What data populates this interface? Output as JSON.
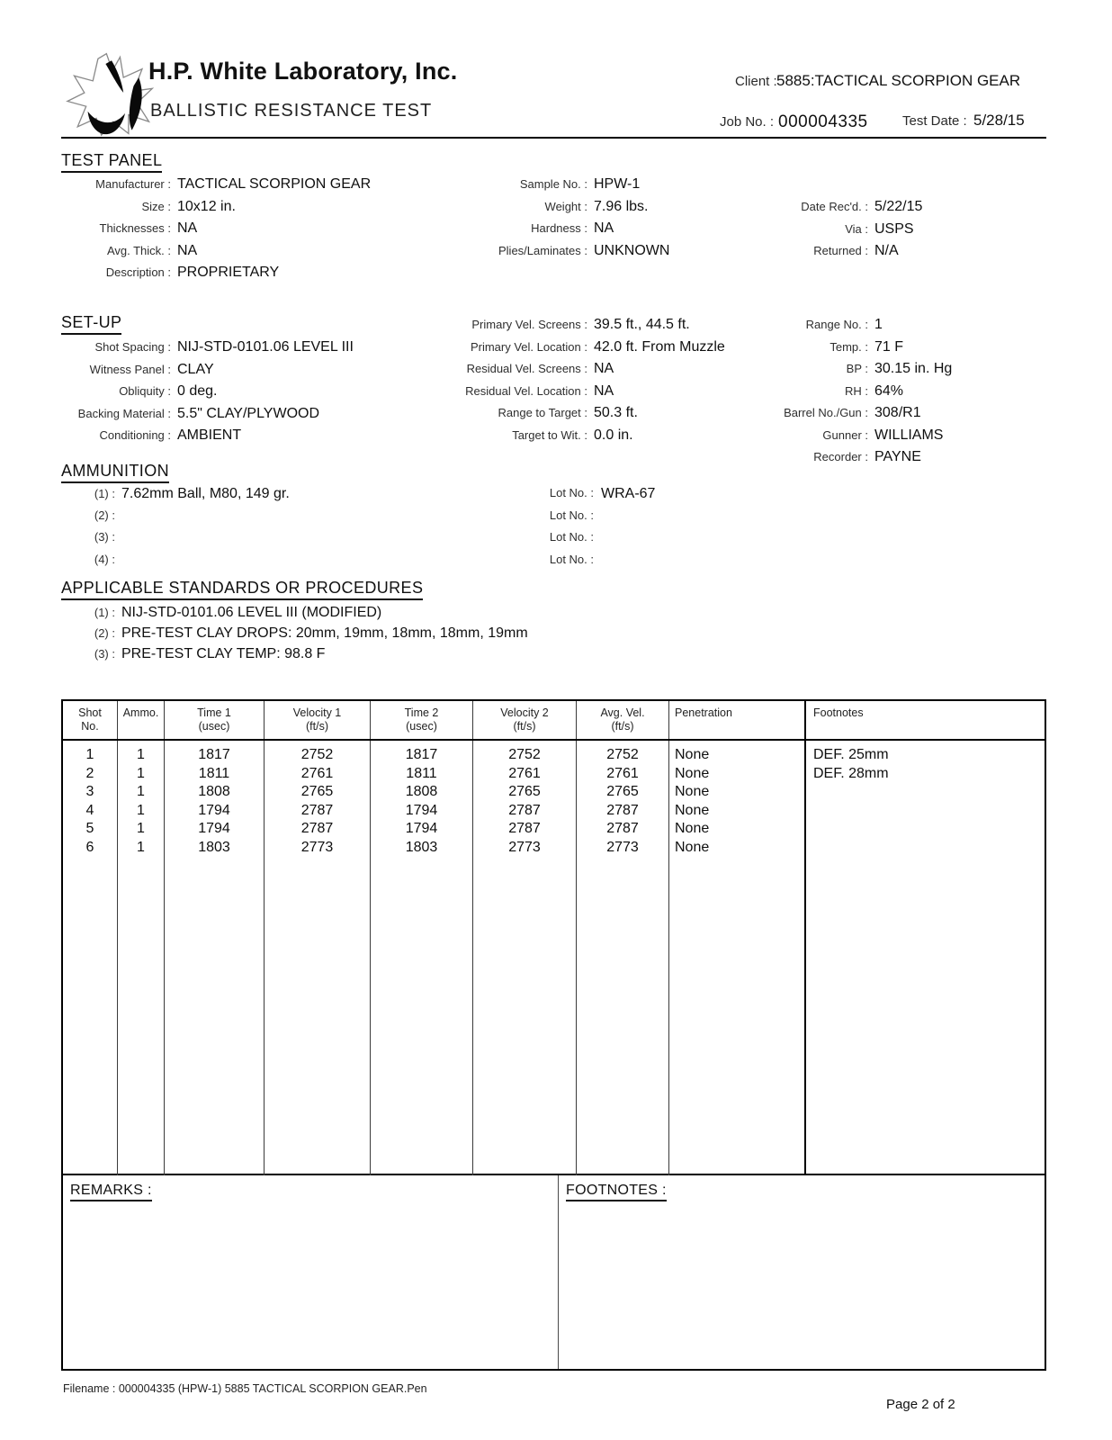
{
  "header": {
    "company": "H.P. White Laboratory, Inc.",
    "doc_title": "BALLISTIC RESISTANCE TEST",
    "client_label": "Client :",
    "client_value": "5885:TACTICAL SCORPION GEAR",
    "job_label": "Job No. :",
    "job_value": "000004335",
    "test_date_label": "Test Date :",
    "test_date_value": "5/28/15"
  },
  "test_panel": {
    "heading": "TEST PANEL",
    "left": [
      {
        "label": "Manufacturer :",
        "value": "TACTICAL SCORPION GEAR"
      },
      {
        "label": "Size :",
        "value": "10x12 in."
      },
      {
        "label": "Thicknesses :",
        "value": "NA"
      },
      {
        "label": "Avg. Thick. :",
        "value": "NA"
      },
      {
        "label": "Description :",
        "value": "PROPRIETARY"
      }
    ],
    "middle": [
      {
        "label": "Sample No. :",
        "value": "HPW-1"
      },
      {
        "label": "Weight :",
        "value": "7.96 lbs."
      },
      {
        "label": "Hardness :",
        "value": "NA"
      },
      {
        "label": "Plies/Laminates :",
        "value": "UNKNOWN"
      }
    ],
    "right": [
      {
        "label": "Date Rec'd. :",
        "value": "5/22/15"
      },
      {
        "label": "Via :",
        "value": "USPS"
      },
      {
        "label": "Returned :",
        "value": "N/A"
      }
    ]
  },
  "setup": {
    "heading": "SET-UP",
    "left": [
      {
        "label": "Shot Spacing :",
        "value": "NIJ-STD-0101.06 LEVEL III"
      },
      {
        "label": "Witness Panel :",
        "value": "CLAY"
      },
      {
        "label": "Obliquity :",
        "value": "0 deg."
      },
      {
        "label": "Backing Material :",
        "value": "5.5\" CLAY/PLYWOOD"
      },
      {
        "label": "Conditioning :",
        "value": "AMBIENT"
      }
    ],
    "middle": [
      {
        "label": "Primary Vel. Screens :",
        "value": "39.5 ft., 44.5 ft."
      },
      {
        "label": "Primary Vel. Location :",
        "value": "42.0 ft. From Muzzle"
      },
      {
        "label": "Residual Vel. Screens :",
        "value": "NA"
      },
      {
        "label": "Residual Vel. Location :",
        "value": "NA"
      },
      {
        "label": "Range to Target :",
        "value": "50.3 ft."
      },
      {
        "label": "Target to Wit. :",
        "value": "0.0 in."
      }
    ],
    "right": [
      {
        "label": "Range No. :",
        "value": "1"
      },
      {
        "label": "Temp. :",
        "value": "71 F"
      },
      {
        "label": "BP :",
        "value": "30.15 in. Hg"
      },
      {
        "label": "RH :",
        "value": "64%"
      },
      {
        "label": "Barrel No./Gun :",
        "value": "308/R1"
      },
      {
        "label": "Gunner :",
        "value": "WILLIAMS"
      },
      {
        "label": "Recorder :",
        "value": "PAYNE"
      }
    ]
  },
  "ammunition": {
    "heading": "AMMUNITION",
    "rows": [
      {
        "num": "(1) :",
        "desc": "7.62mm Ball, M80, 149 gr.",
        "lot_label": "Lot No. :",
        "lot": "WRA-67"
      },
      {
        "num": "(2) :",
        "desc": "",
        "lot_label": "Lot No. :",
        "lot": ""
      },
      {
        "num": "(3) :",
        "desc": "",
        "lot_label": "Lot No. :",
        "lot": ""
      },
      {
        "num": "(4) :",
        "desc": "",
        "lot_label": "Lot No. :",
        "lot": ""
      }
    ]
  },
  "standards": {
    "heading": "APPLICABLE STANDARDS OR PROCEDURES",
    "rows": [
      {
        "label": "(1) :",
        "value": "NIJ-STD-0101.06 LEVEL III (MODIFIED)"
      },
      {
        "label": "(2) :",
        "value": "PRE-TEST CLAY DROPS: 20mm, 19mm, 18mm, 18mm, 19mm"
      },
      {
        "label": "(3) :",
        "value": "PRE-TEST CLAY TEMP: 98.8 F"
      }
    ]
  },
  "results_table": {
    "headers": [
      [
        "Shot",
        "No."
      ],
      [
        "Ammo."
      ],
      [
        "Time 1",
        "(usec)"
      ],
      [
        "Velocity 1",
        "(ft/s)"
      ],
      [
        "Time 2",
        "(usec)"
      ],
      [
        "Velocity 2",
        "(ft/s)"
      ],
      [
        "Avg. Vel.",
        "(ft/s)"
      ],
      [
        "Penetration"
      ],
      [
        "Footnotes"
      ]
    ],
    "rows": [
      [
        "1",
        "1",
        "1817",
        "2752",
        "1817",
        "2752",
        "2752",
        "None",
        "DEF. 25mm"
      ],
      [
        "2",
        "1",
        "1811",
        "2761",
        "1811",
        "2761",
        "2761",
        "None",
        "DEF. 28mm"
      ],
      [
        "3",
        "1",
        "1808",
        "2765",
        "1808",
        "2765",
        "2765",
        "None",
        ""
      ],
      [
        "4",
        "1",
        "1794",
        "2787",
        "1794",
        "2787",
        "2787",
        "None",
        ""
      ],
      [
        "5",
        "1",
        "1794",
        "2787",
        "1794",
        "2787",
        "2787",
        "None",
        ""
      ],
      [
        "6",
        "1",
        "1803",
        "2773",
        "1803",
        "2773",
        "2773",
        "None",
        ""
      ]
    ]
  },
  "remarks": {
    "label": "REMARKS :"
  },
  "footnotes_box": {
    "label": "FOOTNOTES :"
  },
  "footer": {
    "filename": "Filename : 000004335 (HPW-1) 5885 TACTICAL SCORPION GEAR.Pen",
    "page": "Page 2 of 2"
  }
}
